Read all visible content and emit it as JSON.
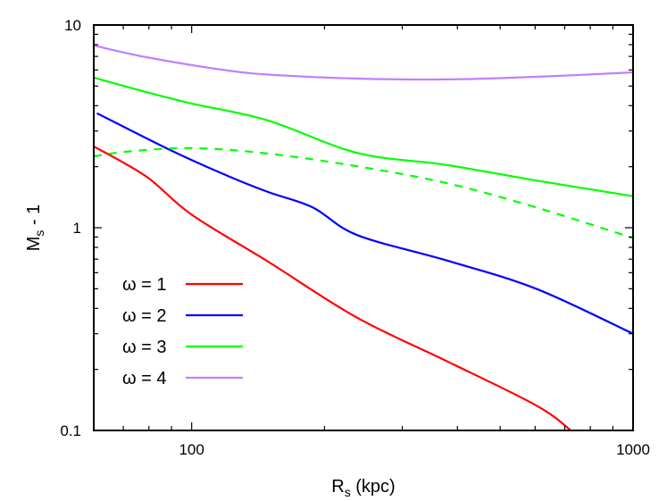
{
  "chart_data": {
    "type": "line",
    "title": "",
    "xlabel": "R",
    "xlabel_sub": "s",
    "xlabel_unit": " (kpc)",
    "ylabel": "M",
    "ylabel_sub": "s",
    "ylabel_suffix": " - 1",
    "xscale": "log",
    "yscale": "log",
    "xlim": [
      60,
      1000
    ],
    "ylim": [
      0.1,
      10
    ],
    "x_ticks": [
      {
        "value": 100,
        "label": "100"
      },
      {
        "value": 1000,
        "label": "1000"
      }
    ],
    "y_ticks": [
      {
        "value": 0.1,
        "label": "0.1"
      },
      {
        "value": 1,
        "label": "1"
      },
      {
        "value": 10,
        "label": "10"
      }
    ],
    "grid": false,
    "legend_position": "lower left (inside)",
    "series": [
      {
        "name": "ω = 1",
        "color": "#ff0000",
        "dash": "solid",
        "in_legend": true,
        "x": [
          60,
          78.9,
          100,
          149,
          237,
          378,
          603,
          723
        ],
        "y": [
          2.52,
          1.79,
          1.16,
          0.68,
          0.36,
          0.22,
          0.133,
          0.1
        ]
      },
      {
        "name": "ω = 2",
        "color": "#0000ff",
        "dash": "solid",
        "in_legend": true,
        "x": [
          61,
          88.6,
          118,
          149,
          188,
          237,
          378,
          603,
          1000
        ],
        "y": [
          3.67,
          2.44,
          1.84,
          1.5,
          1.26,
          0.92,
          0.69,
          0.5,
          0.3
        ]
      },
      {
        "name": "ω = 3",
        "color": "#00ff00",
        "dash": "solid",
        "in_legend": true,
        "x": [
          60,
          78.9,
          100,
          149,
          237,
          378,
          603,
          1000
        ],
        "y": [
          5.5,
          4.67,
          4.1,
          3.38,
          2.34,
          2.04,
          1.71,
          1.43
        ]
      },
      {
        "name": "ω = 3 (dashed)",
        "color": "#00ff00",
        "dash": "dashed",
        "in_legend": false,
        "x": [
          60,
          70.9,
          100,
          149,
          237,
          378,
          603,
          1000
        ],
        "y": [
          2.25,
          2.37,
          2.47,
          2.32,
          2.01,
          1.66,
          1.26,
          0.89
        ]
      },
      {
        "name": "ω = 4",
        "color": "#bf80ff",
        "dash": "solid",
        "in_legend": true,
        "x": [
          60,
          78.9,
          121,
          156,
          237,
          378,
          603,
          1000
        ],
        "y": [
          7.93,
          6.94,
          5.96,
          5.66,
          5.44,
          5.39,
          5.55,
          5.84
        ]
      }
    ]
  }
}
